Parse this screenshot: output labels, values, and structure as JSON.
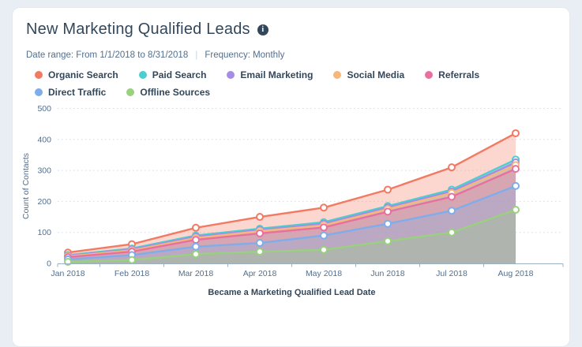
{
  "page": {
    "background_color": "#e9eef4",
    "card_color": "#ffffff"
  },
  "header": {
    "title": "New Marketing Qualified Leads",
    "info_icon_glyph": "i"
  },
  "meta": {
    "date_range": "Date range: From 1/1/2018 to 8/31/2018",
    "divider": "|",
    "frequency": "Frequency: Monthly"
  },
  "chart_data": {
    "type": "area",
    "title": "New Marketing Qualified Leads",
    "xlabel": "Became a Marketing Qualified Lead Date",
    "ylabel": "Count of Contacts",
    "categories": [
      "Jan 2018",
      "Feb 2018",
      "Mar 2018",
      "Apr 2018",
      "May 2018",
      "Jun 2018",
      "Jul 2018",
      "Aug 2018"
    ],
    "y_ticks": [
      0,
      100,
      200,
      300,
      400,
      500
    ],
    "ylim": [
      0,
      500
    ],
    "grid": "horizontal-dashed",
    "legend_position": "top",
    "marker_style": "hollow-circle",
    "axis_color": "#9cb0c3",
    "grid_color": "#d3dce5",
    "tick_label_color": "#516f90",
    "axis_title_color": "#33475b",
    "series": [
      {
        "name": "Organic Search",
        "color": "#f27a63",
        "values": [
          35,
          62,
          115,
          150,
          180,
          238,
          310,
          420
        ]
      },
      {
        "name": "Paid Search",
        "color": "#4ecdd1",
        "values": [
          27,
          48,
          90,
          112,
          133,
          185,
          238,
          335
        ]
      },
      {
        "name": "Email Marketing",
        "color": "#a58de4",
        "values": [
          25,
          45,
          86,
          108,
          128,
          180,
          232,
          326
        ]
      },
      {
        "name": "Social Media",
        "color": "#f5b87a",
        "values": [
          23,
          42,
          82,
          104,
          123,
          175,
          227,
          317
        ]
      },
      {
        "name": "Referrals",
        "color": "#e8709f",
        "values": [
          20,
          38,
          76,
          97,
          116,
          167,
          215,
          305
        ]
      },
      {
        "name": "Direct Traffic",
        "color": "#7fadeb",
        "values": [
          13,
          27,
          54,
          66,
          90,
          128,
          170,
          250
        ]
      },
      {
        "name": "Offline Sources",
        "color": "#99d17e",
        "values": [
          5,
          11,
          30,
          38,
          44,
          72,
          100,
          173
        ]
      }
    ]
  }
}
